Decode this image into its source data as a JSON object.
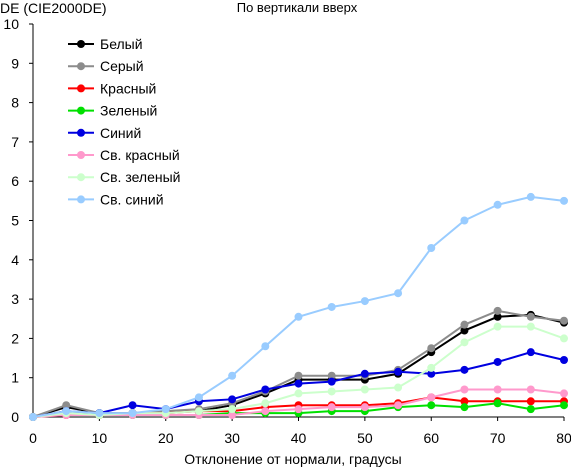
{
  "chart_data": {
    "type": "line",
    "title": "По вертикали вверх",
    "ylabel": "DE (CIE2000DE)",
    "xlabel": "Отклонение от нормали, градусы",
    "x": [
      0,
      5,
      10,
      15,
      20,
      25,
      30,
      35,
      40,
      45,
      50,
      55,
      60,
      65,
      70,
      75,
      80
    ],
    "xlim": [
      0,
      80
    ],
    "ylim": [
      0,
      10
    ],
    "xticks": [
      0,
      10,
      20,
      30,
      40,
      50,
      60,
      70,
      80
    ],
    "yticks": [
      0,
      1,
      2,
      3,
      4,
      5,
      6,
      7,
      8,
      9,
      10
    ],
    "grid": false,
    "legend_position": "top-left",
    "series": [
      {
        "name": "Белый",
        "color": "#000000",
        "values": [
          0,
          0.25,
          0.1,
          0.1,
          0.15,
          0.15,
          0.3,
          0.6,
          0.95,
          0.95,
          0.95,
          1.1,
          1.65,
          2.2,
          2.55,
          2.6,
          2.4
        ]
      },
      {
        "name": "Серый",
        "color": "#8c8c8c",
        "values": [
          0,
          0.3,
          0.1,
          0.1,
          0.15,
          0.2,
          0.35,
          0.65,
          1.05,
          1.05,
          1.05,
          1.2,
          1.75,
          2.35,
          2.7,
          2.55,
          2.45
        ]
      },
      {
        "name": "Красный",
        "color": "#ff0000",
        "values": [
          0,
          0.05,
          0.05,
          0.1,
          0.1,
          0.15,
          0.15,
          0.25,
          0.3,
          0.3,
          0.3,
          0.35,
          0.5,
          0.4,
          0.4,
          0.4,
          0.4
        ]
      },
      {
        "name": "Зеленый",
        "color": "#00e000",
        "values": [
          0,
          0.1,
          0.05,
          0.05,
          0.05,
          0.05,
          0.1,
          0.1,
          0.1,
          0.15,
          0.15,
          0.25,
          0.3,
          0.25,
          0.35,
          0.2,
          0.3
        ]
      },
      {
        "name": "Синий",
        "color": "#0000e0",
        "values": [
          0,
          0.15,
          0.1,
          0.3,
          0.2,
          0.4,
          0.45,
          0.7,
          0.85,
          0.9,
          1.1,
          1.15,
          1.1,
          1.2,
          1.4,
          1.65,
          1.45
        ]
      },
      {
        "name": "Св. красный",
        "color": "#ff99cc",
        "values": [
          0,
          0.05,
          0.05,
          0.05,
          0.05,
          0.05,
          0.05,
          0.15,
          0.2,
          0.25,
          0.25,
          0.3,
          0.5,
          0.7,
          0.7,
          0.7,
          0.6
        ]
      },
      {
        "name": "Св. зеленый",
        "color": "#ccffcc",
        "values": [
          0,
          0.1,
          0.05,
          0.1,
          0.1,
          0.15,
          0.2,
          0.35,
          0.6,
          0.65,
          0.7,
          0.75,
          1.25,
          1.9,
          2.3,
          2.3,
          2.0
        ]
      },
      {
        "name": "Св. синий",
        "color": "#99ccff",
        "values": [
          0,
          0.15,
          0.1,
          0.1,
          0.2,
          0.5,
          1.05,
          1.8,
          2.55,
          2.8,
          2.95,
          3.15,
          4.3,
          5.0,
          5.4,
          5.6,
          5.5
        ]
      }
    ]
  }
}
